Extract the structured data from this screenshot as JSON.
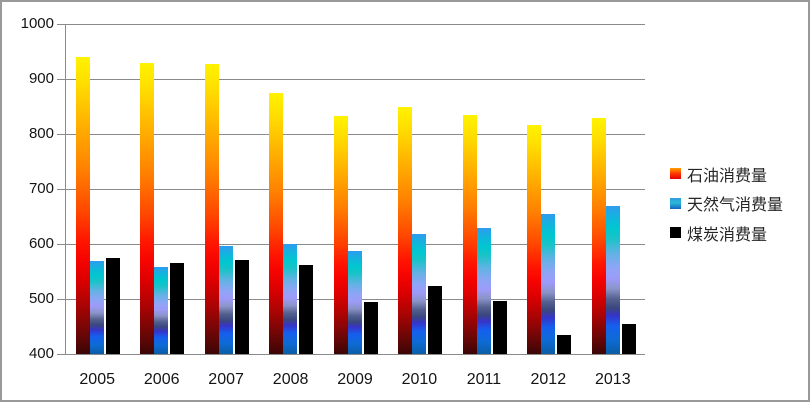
{
  "window": {
    "background": "#FFFFFF",
    "border_color": "#999999"
  },
  "chart_data": {
    "type": "bar",
    "title": "",
    "xlabel": "",
    "ylabel": "",
    "categories": [
      "2005",
      "2006",
      "2007",
      "2008",
      "2009",
      "2010",
      "2011",
      "2012",
      "2013"
    ],
    "series": [
      {
        "key": "oil",
        "name": "石油消费量",
        "values": [
          940,
          930,
          928,
          874,
          833,
          849,
          835,
          817,
          830
        ],
        "fill_stops": [
          [
            "#FFF200",
            0
          ],
          [
            "#FFE000",
            8
          ],
          [
            "#FFB300",
            22
          ],
          [
            "#FF8000",
            38
          ],
          [
            "#FF4700",
            52
          ],
          [
            "#FF1500",
            62
          ],
          [
            "#F70400",
            68
          ],
          [
            "#DC0000",
            75
          ],
          [
            "#A80404",
            84
          ],
          [
            "#6B0606",
            93
          ],
          [
            "#3C0505",
            100
          ]
        ],
        "legend_stops": [
          [
            "#FFA200",
            0
          ],
          [
            "#FF3800",
            50
          ],
          [
            "#DF0000",
            100
          ]
        ]
      },
      {
        "key": "gas",
        "name": "天然气消费量",
        "values": [
          570,
          558,
          596,
          600,
          588,
          619,
          629,
          655,
          669
        ],
        "fill_stops": [
          [
            "#2F9BEF",
            0
          ],
          [
            "#13B3DF",
            7
          ],
          [
            "#01C7CF",
            15
          ],
          [
            "#19C3C8",
            22
          ],
          [
            "#62B2E4",
            32
          ],
          [
            "#8FA5F6",
            42
          ],
          [
            "#9D9BF8",
            49
          ],
          [
            "#8B93C8",
            56
          ],
          [
            "#53608E",
            63
          ],
          [
            "#3A477E",
            69
          ],
          [
            "#3634C9",
            74
          ],
          [
            "#155FEE",
            81
          ],
          [
            "#0E6BD5",
            90
          ],
          [
            "#0A5DA5",
            100
          ]
        ],
        "legend_stops": [
          [
            "#2F9BE0",
            0
          ],
          [
            "#2BB8D8",
            45
          ],
          [
            "#1463C2",
            100
          ]
        ]
      },
      {
        "key": "coal",
        "name": "煤炭消费量",
        "values": [
          575,
          565,
          571,
          562,
          494,
          523,
          496,
          435,
          455
        ],
        "fill_stops": [
          [
            "#000000",
            0
          ],
          [
            "#000000",
            100
          ]
        ],
        "legend_stops": [
          [
            "#000000",
            0
          ],
          [
            "#000000",
            100
          ]
        ]
      }
    ],
    "axes": {
      "ylim": [
        400,
        1000
      ],
      "ytick_step": 100,
      "ytick_labels": [
        "400",
        "500",
        "600",
        "700",
        "800",
        "900",
        "1000"
      ],
      "grid": true,
      "gridline_color": "#8A8A8A",
      "axis_color": "#8A8A8A",
      "tick_color": "#8A8A8A",
      "label_color": "#141414"
    },
    "legend": {
      "position": "right",
      "text_color": "#262626"
    }
  }
}
